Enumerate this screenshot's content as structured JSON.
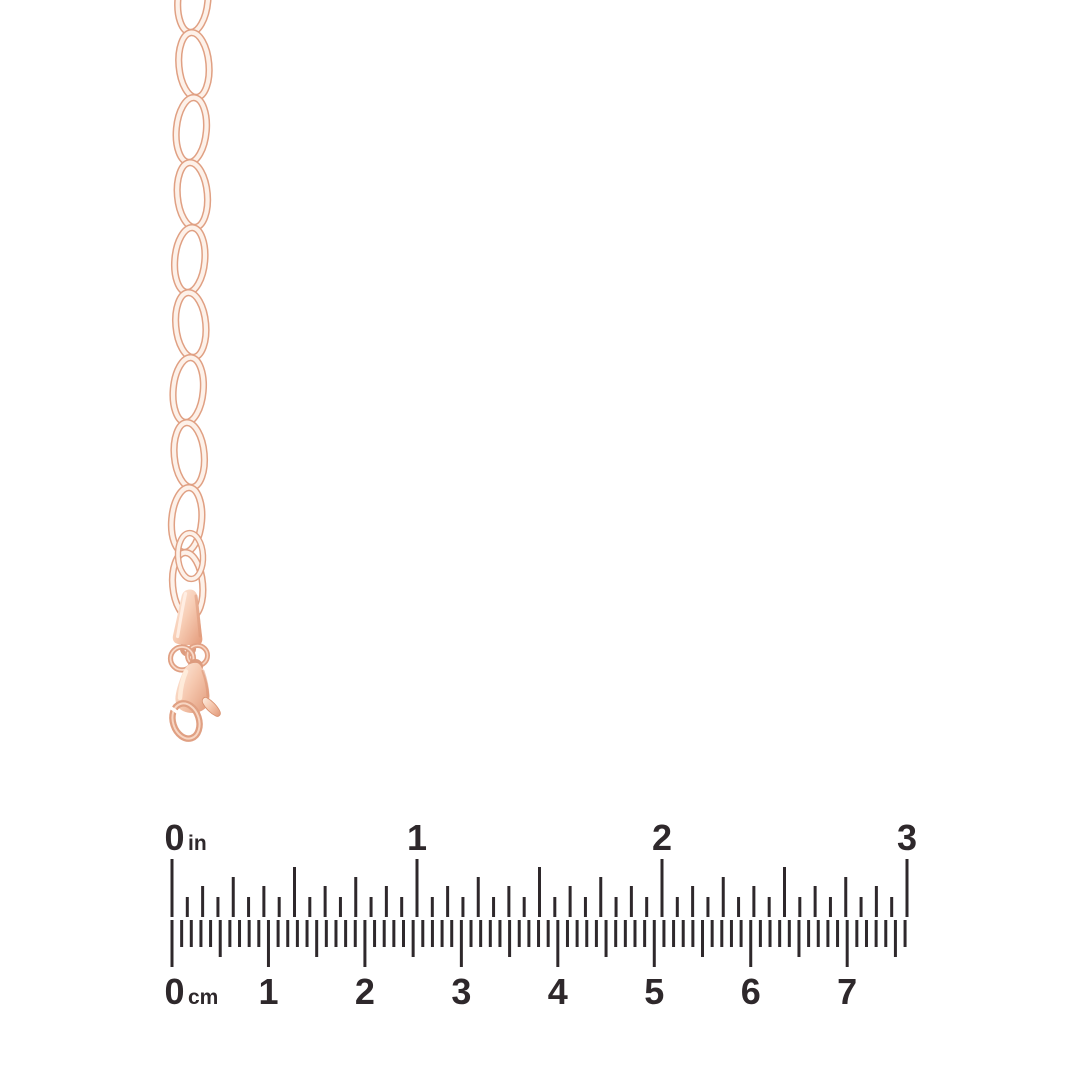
{
  "image": {
    "background_color": "#ffffff",
    "description": "Rose gold oval cable link chain with lobster clasp shown above a printed inch and centimeter ruler"
  },
  "product": {
    "name": "rose gold cable chain with lobster clasp",
    "visible_links": 10,
    "parts": [
      "oval-cable-links",
      "teardrop-end-tag",
      "jump-rings",
      "lobster-clasp"
    ],
    "metal_colors": {
      "outline": "#e0a083",
      "inner_light": "#fdf1e9",
      "face_light": "#feeee2",
      "face_mid": "#f7cdb5",
      "face_deep": "#e6a081",
      "shadow": "#d8906f",
      "highlight": "#fff0e5"
    }
  },
  "ruler": {
    "ink_color": "#2e282b",
    "inch_scale": {
      "unit": "in",
      "labels": [
        "0",
        "1",
        "2",
        "3"
      ],
      "max_value": 3,
      "subdivisions_per_inch": 16
    },
    "cm_scale": {
      "unit": "cm",
      "labels": [
        "0",
        "1",
        "2",
        "3",
        "4",
        "5",
        "6",
        "7"
      ],
      "total_mm_ticks": 77,
      "subdivisions_per_cm": 10
    }
  }
}
